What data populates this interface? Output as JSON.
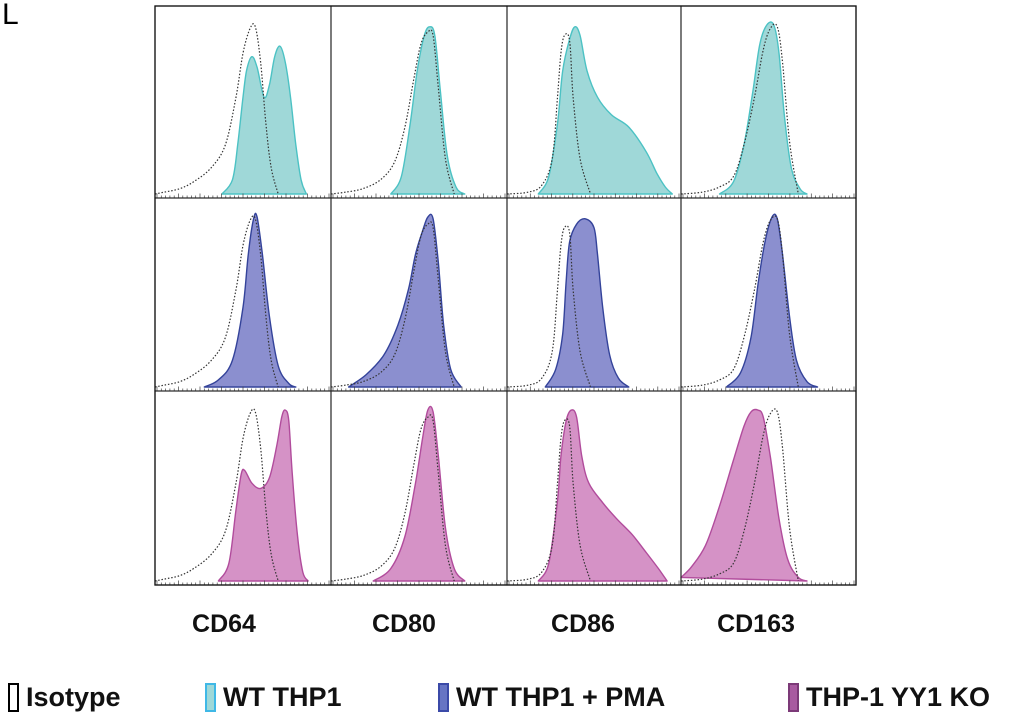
{
  "panel_label": "L",
  "chart_data": {
    "type": "histogram-grid",
    "columns": [
      "CD64",
      "CD80",
      "CD86",
      "CD163"
    ],
    "rows": [
      {
        "legend_index": 1,
        "color": "#9fd8d8",
        "edge": "#4cc2c4"
      },
      {
        "legend_index": 2,
        "color": "#8b8fcf",
        "edge": "#34439a"
      },
      {
        "legend_index": 3,
        "color": "#d592c6",
        "edge": "#b14c9c"
      }
    ],
    "isotype_style": {
      "stroke": "#333333",
      "dash": "dotted"
    },
    "legend": [
      {
        "label": "Isotype",
        "swatch_fill": "#ffffff",
        "swatch_edge": "#000000"
      },
      {
        "label": "WT THP1",
        "swatch_fill": "#9fd8d8",
        "swatch_edge": "#3fb8e6"
      },
      {
        "label": "WT THP1 + PMA",
        "swatch_fill": "#6674c4",
        "swatch_edge": "#3b4aa8"
      },
      {
        "label": "THP-1 YY1 KO",
        "swatch_fill": "#a85aa0",
        "swatch_edge": "#7c3a78"
      }
    ]
  }
}
